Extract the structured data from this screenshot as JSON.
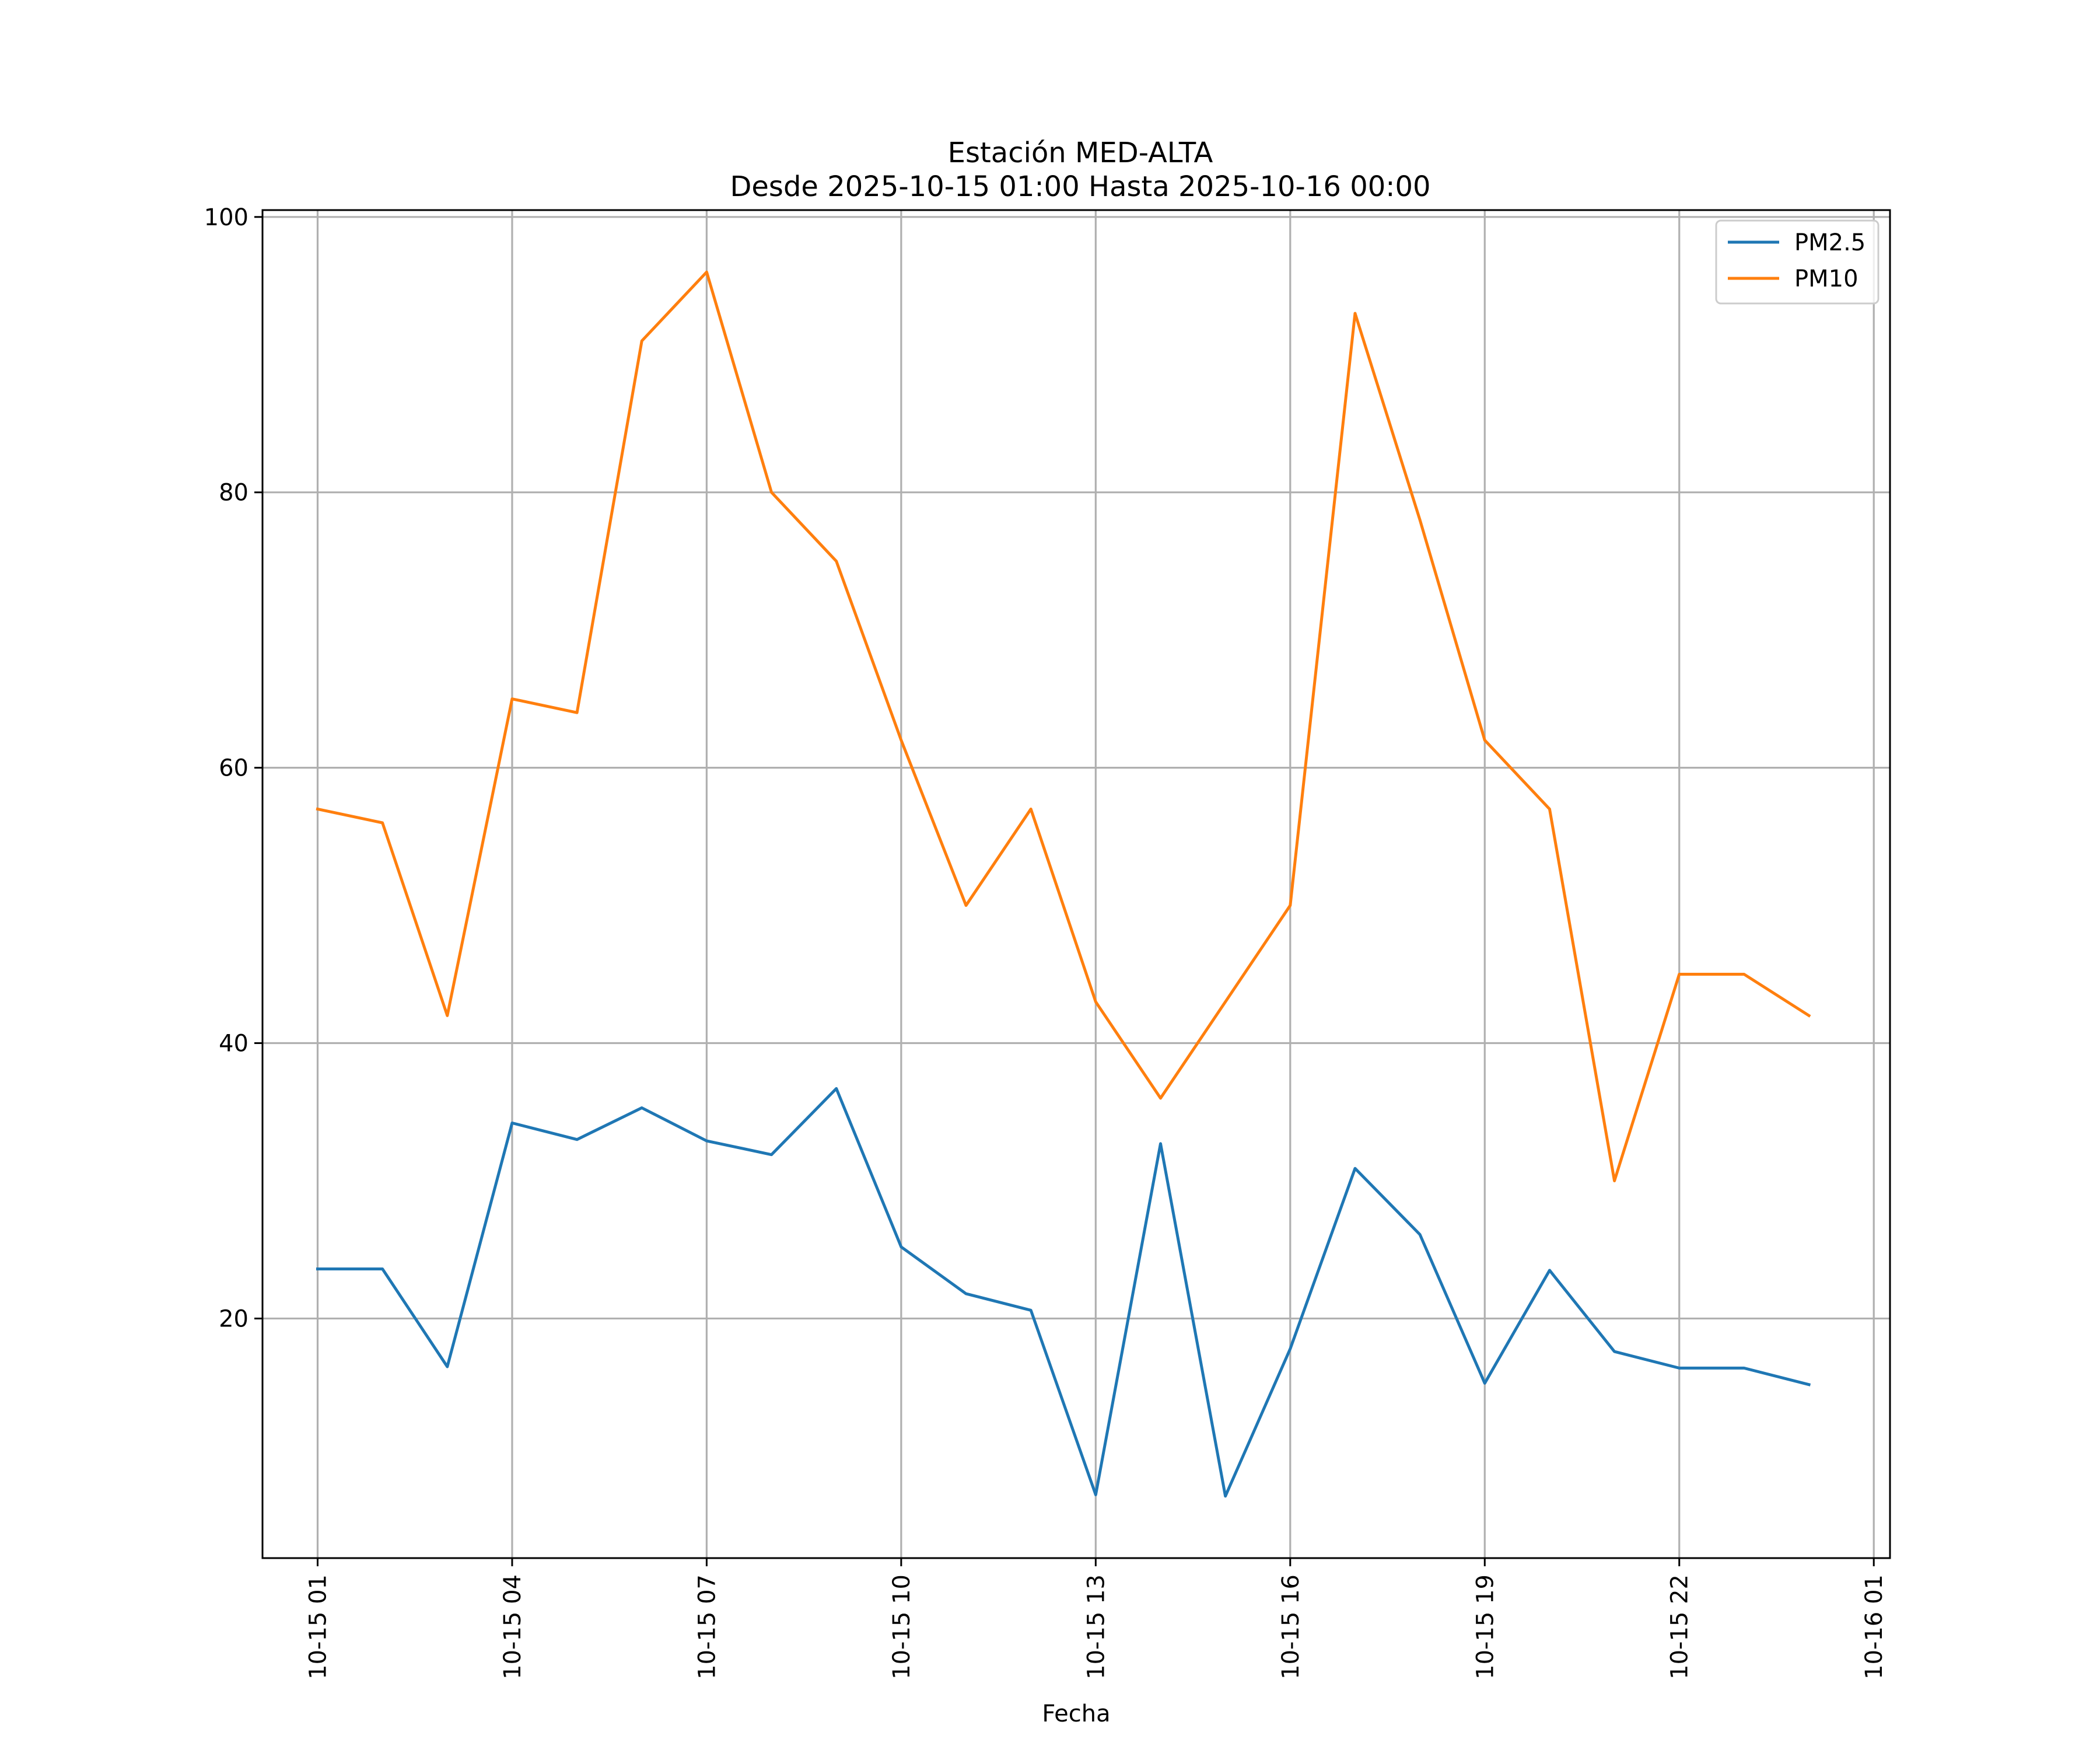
{
  "chart_data": {
    "type": "line",
    "title_line1": "Estación MED-ALTA",
    "title_line2": "Desde 2025-10-15 01:00 Hasta 2025-10-16 00:00",
    "xlabel": "Fecha",
    "ylabel": "",
    "ylim": [
      2.6,
      100.5
    ],
    "xlim": [
      -0.85,
      24.25
    ],
    "grid": true,
    "legend_position": "top-right",
    "x_hours": [
      0,
      1,
      2,
      3,
      4,
      5,
      6,
      7,
      8,
      9,
      10,
      11,
      12,
      13,
      14,
      15,
      16,
      17,
      18,
      19,
      20,
      21,
      22,
      23
    ],
    "x_ticks": [
      {
        "pos": 0,
        "label": "10-15 01"
      },
      {
        "pos": 3,
        "label": "10-15 04"
      },
      {
        "pos": 6,
        "label": "10-15 07"
      },
      {
        "pos": 9,
        "label": "10-15 10"
      },
      {
        "pos": 12,
        "label": "10-15 13"
      },
      {
        "pos": 15,
        "label": "10-15 16"
      },
      {
        "pos": 18,
        "label": "10-15 19"
      },
      {
        "pos": 21,
        "label": "10-15 22"
      },
      {
        "pos": 24,
        "label": "10-16 01"
      }
    ],
    "y_ticks": [
      {
        "value": 20,
        "label": "20"
      },
      {
        "value": 40,
        "label": "40"
      },
      {
        "value": 60,
        "label": "60"
      },
      {
        "value": 80,
        "label": "80"
      },
      {
        "value": 100,
        "label": "100"
      }
    ],
    "series": [
      {
        "name": "PM2.5",
        "color": "#1f77b4",
        "values": [
          23.6,
          23.6,
          16.5,
          34.2,
          33.0,
          35.3,
          32.9,
          31.9,
          36.7,
          25.2,
          21.8,
          20.6,
          7.2,
          32.7,
          7.1,
          17.8,
          30.9,
          26.1,
          15.3,
          23.5,
          17.6,
          16.4,
          16.4,
          15.2
        ]
      },
      {
        "name": "PM10",
        "color": "#ff7f0e",
        "values": [
          57,
          56,
          42,
          65,
          64,
          91,
          96,
          80,
          75,
          62,
          50,
          57,
          43,
          36,
          43,
          50,
          93,
          78,
          62,
          57,
          30,
          45,
          45,
          42
        ]
      }
    ]
  }
}
